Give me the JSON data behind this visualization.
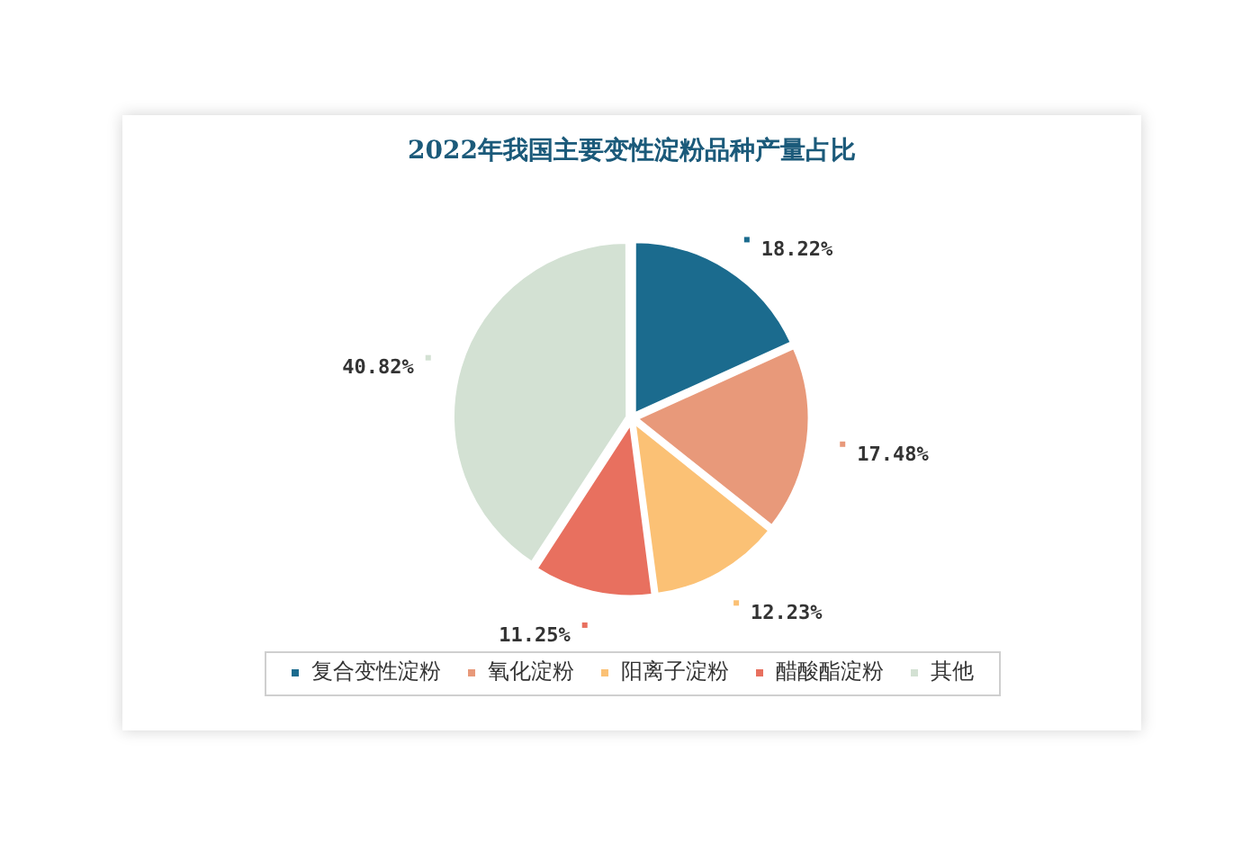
{
  "chart_data": {
    "type": "pie",
    "title": "2022年我国主要变性淀粉品种产量占比",
    "categories": [
      "复合变性淀粉",
      "氧化淀粉",
      "阳离子淀粉",
      "醋酸酯淀粉",
      "其他"
    ],
    "values": [
      18.22,
      17.48,
      12.23,
      11.25,
      40.82
    ],
    "value_labels": [
      "18.22%",
      "17.48%",
      "12.23%",
      "11.25%",
      "40.82%"
    ],
    "colors": [
      "#1b6b8e",
      "#e8997a",
      "#fbc175",
      "#e8705f",
      "#d3e1d3"
    ],
    "legend": "bottom"
  }
}
